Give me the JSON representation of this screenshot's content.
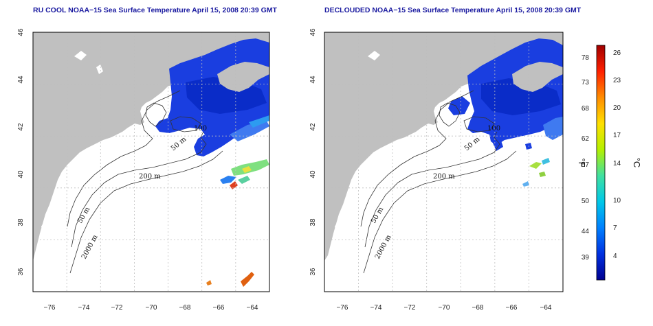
{
  "maps": [
    {
      "title": "RU COOL NOAA−15 Sea Surface Temperature April 15, 2008 20:39 GMT",
      "lat_ticks": [
        "36",
        "38",
        "40",
        "42",
        "44",
        "46"
      ],
      "lon_ticks": [
        "−76",
        "−74",
        "−72",
        "−70",
        "−68",
        "−66",
        "−64"
      ],
      "contour_labels": [
        "50 m",
        "200 m",
        "50 m",
        "2000 m",
        "100"
      ]
    },
    {
      "title": "DECLOUDED NOAA−15 Sea Surface Temperature April 15, 2008 20:39 GMT",
      "lat_ticks": [
        "36",
        "38",
        "40",
        "42",
        "44",
        "46"
      ],
      "lon_ticks": [
        "−76",
        "−74",
        "−72",
        "−70",
        "−68",
        "−66",
        "−64"
      ],
      "contour_labels": [
        "50 m",
        "200 m",
        "50 m",
        "2000 m",
        "100"
      ]
    }
  ],
  "colorbar": {
    "fahrenheit_ticks": [
      "78",
      "73",
      "68",
      "62",
      "57",
      "50",
      "44",
      "39"
    ],
    "celsius_ticks": [
      "26",
      "23",
      "20",
      "17",
      "14",
      "10",
      "7",
      "4"
    ],
    "fahrenheit_unit": "°F",
    "celsius_unit": "°C",
    "colors": [
      "#a00000",
      "#ff2000",
      "#ff8c00",
      "#ffe000",
      "#b4f000",
      "#40e0a0",
      "#00c8e8",
      "#0080ff",
      "#0030e0",
      "#000090"
    ]
  },
  "map_colors": {
    "land": "#c0c0c0",
    "ocean": "#ffffff",
    "cold_water": "#1a3ee0",
    "grid": "#bdbdbd"
  }
}
